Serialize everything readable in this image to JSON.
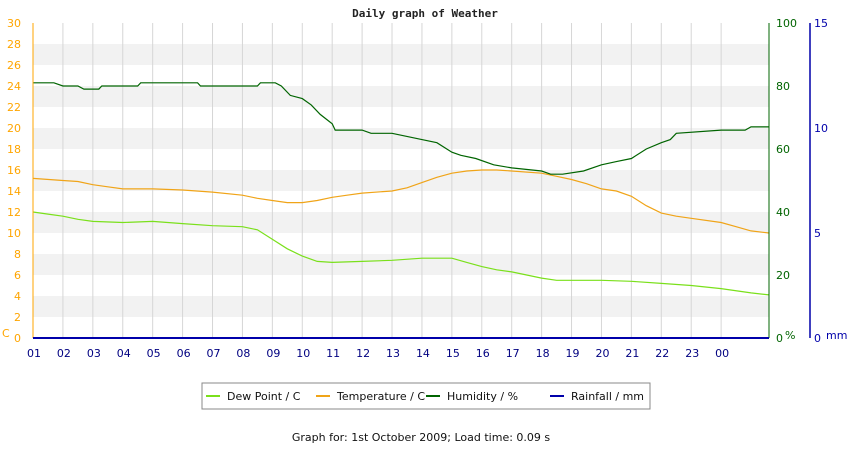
{
  "chart_data": {
    "type": "line",
    "title": "Daily graph of Weather",
    "footer": "Graph for: 1st October 2009; Load time: 0.09 s",
    "x": {
      "tick_labels": [
        "01",
        "02",
        "03",
        "04",
        "05",
        "06",
        "07",
        "08",
        "09",
        "10",
        "11",
        "12",
        "13",
        "14",
        "15",
        "16",
        "17",
        "18",
        "19",
        "20",
        "21",
        "22",
        "23",
        "00"
      ],
      "range": [
        0,
        24.6
      ]
    },
    "axes": {
      "left": {
        "unit_label": "C",
        "ylim": [
          0,
          30
        ],
        "ticks": [
          0,
          2,
          4,
          6,
          8,
          10,
          12,
          14,
          16,
          18,
          20,
          22,
          24,
          26,
          28,
          30
        ],
        "color": "#ffa500"
      },
      "right1": {
        "unit_label": "%",
        "ylim": [
          0,
          100
        ],
        "ticks": [
          0,
          20,
          40,
          60,
          80,
          100
        ],
        "color": "#006400"
      },
      "right2": {
        "unit_label": "mm",
        "ylim": [
          0,
          15
        ],
        "ticks": [
          0,
          5,
          10,
          15
        ],
        "color": "#0000aa"
      }
    },
    "grid": true,
    "legend_position": "bottom",
    "series": [
      {
        "name": "Dew Point / C",
        "axis": "left",
        "color": "#7ae01b",
        "points": [
          [
            0,
            12
          ],
          [
            0.5,
            11.8
          ],
          [
            1,
            11.6
          ],
          [
            1.5,
            11.3
          ],
          [
            2,
            11.1
          ],
          [
            3,
            11
          ],
          [
            4,
            11.1
          ],
          [
            5,
            10.9
          ],
          [
            6,
            10.7
          ],
          [
            7,
            10.6
          ],
          [
            7.5,
            10.3
          ],
          [
            8,
            9.4
          ],
          [
            8.5,
            8.5
          ],
          [
            9,
            7.8
          ],
          [
            9.5,
            7.3
          ],
          [
            10,
            7.2
          ],
          [
            11,
            7.3
          ],
          [
            12,
            7.4
          ],
          [
            13,
            7.6
          ],
          [
            14,
            7.6
          ],
          [
            14.5,
            7.2
          ],
          [
            15,
            6.8
          ],
          [
            15.5,
            6.5
          ],
          [
            16,
            6.3
          ],
          [
            16.5,
            6
          ],
          [
            17,
            5.7
          ],
          [
            17.5,
            5.5
          ],
          [
            18,
            5.5
          ],
          [
            19,
            5.5
          ],
          [
            20,
            5.4
          ],
          [
            21,
            5.2
          ],
          [
            22,
            5
          ],
          [
            23,
            4.7
          ],
          [
            24,
            4.3
          ],
          [
            24.6,
            4.1
          ]
        ]
      },
      {
        "name": "Temperature / C",
        "axis": "left",
        "color": "#f0a418",
        "points": [
          [
            0,
            15.2
          ],
          [
            1,
            15
          ],
          [
            1.5,
            14.9
          ],
          [
            2,
            14.6
          ],
          [
            2.5,
            14.4
          ],
          [
            3,
            14.2
          ],
          [
            4,
            14.2
          ],
          [
            5,
            14.1
          ],
          [
            6,
            13.9
          ],
          [
            7,
            13.6
          ],
          [
            7.5,
            13.3
          ],
          [
            8,
            13.1
          ],
          [
            8.5,
            12.9
          ],
          [
            9,
            12.9
          ],
          [
            9.5,
            13.1
          ],
          [
            10,
            13.4
          ],
          [
            10.5,
            13.6
          ],
          [
            11,
            13.8
          ],
          [
            12,
            14
          ],
          [
            12.5,
            14.3
          ],
          [
            13,
            14.8
          ],
          [
            13.5,
            15.3
          ],
          [
            14,
            15.7
          ],
          [
            14.5,
            15.9
          ],
          [
            15,
            16
          ],
          [
            15.5,
            16
          ],
          [
            16,
            15.9
          ],
          [
            17,
            15.7
          ],
          [
            17.5,
            15.4
          ],
          [
            18,
            15.1
          ],
          [
            18.5,
            14.7
          ],
          [
            19,
            14.2
          ],
          [
            19.5,
            14
          ],
          [
            20,
            13.5
          ],
          [
            20.5,
            12.6
          ],
          [
            21,
            11.9
          ],
          [
            21.5,
            11.6
          ],
          [
            22,
            11.4
          ],
          [
            23,
            11
          ],
          [
            23.5,
            10.6
          ],
          [
            24,
            10.2
          ],
          [
            24.6,
            10
          ]
        ]
      },
      {
        "name": "Humidity / %",
        "axis": "right1",
        "color": "#006400",
        "points": [
          [
            0,
            81
          ],
          [
            0.7,
            81
          ],
          [
            1,
            80
          ],
          [
            1.5,
            80
          ],
          [
            1.7,
            79
          ],
          [
            2.2,
            79
          ],
          [
            2.3,
            80
          ],
          [
            3.5,
            80
          ],
          [
            3.6,
            81
          ],
          [
            5.5,
            81
          ],
          [
            5.6,
            80
          ],
          [
            7.5,
            80
          ],
          [
            7.6,
            81
          ],
          [
            8.1,
            81
          ],
          [
            8.3,
            80
          ],
          [
            8.6,
            77
          ],
          [
            9,
            76
          ],
          [
            9.3,
            74
          ],
          [
            9.6,
            71
          ],
          [
            10,
            68
          ],
          [
            10.1,
            66
          ],
          [
            11,
            66
          ],
          [
            11.3,
            65
          ],
          [
            12,
            65
          ],
          [
            13,
            63
          ],
          [
            13.5,
            62
          ],
          [
            14,
            59
          ],
          [
            14.3,
            58
          ],
          [
            14.8,
            57
          ],
          [
            15.4,
            55
          ],
          [
            16,
            54
          ],
          [
            17,
            53
          ],
          [
            17.3,
            52
          ],
          [
            17.7,
            52
          ],
          [
            18.4,
            53
          ],
          [
            19,
            55
          ],
          [
            19.5,
            56
          ],
          [
            20,
            57
          ],
          [
            20.5,
            60
          ],
          [
            21,
            62
          ],
          [
            21.3,
            63
          ],
          [
            21.5,
            65
          ],
          [
            23,
            66
          ],
          [
            23.8,
            66
          ],
          [
            24,
            67
          ],
          [
            24.6,
            67
          ]
        ]
      },
      {
        "name": "Rainfall / mm",
        "axis": "right2",
        "color": "#0000aa",
        "points": [
          [
            0,
            0
          ],
          [
            24.6,
            0
          ]
        ]
      }
    ]
  }
}
